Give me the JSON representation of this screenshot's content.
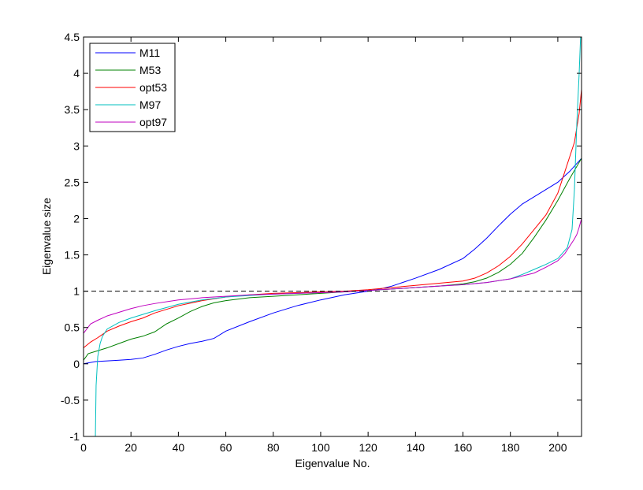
{
  "chart_data": {
    "type": "line",
    "title": "",
    "xlabel": "Eigenvalue No.",
    "ylabel": "Eigenvalue size",
    "xlim": [
      0,
      210
    ],
    "ylim": [
      -1,
      4.5
    ],
    "xticks": [
      0,
      20,
      40,
      60,
      80,
      100,
      120,
      140,
      160,
      180,
      200
    ],
    "yticks": [
      -1,
      -0.5,
      0,
      0.5,
      1,
      1.5,
      2,
      2.5,
      3,
      3.5,
      4,
      4.5
    ],
    "xtick_labels": [
      "0",
      "20",
      "40",
      "60",
      "80",
      "100",
      "120",
      "140",
      "160",
      "180",
      "200"
    ],
    "ytick_labels": [
      "-1",
      "-0.5",
      "0",
      "0.5",
      "1",
      "1.5",
      "2",
      "2.5",
      "3",
      "3.5",
      "4",
      "4.5"
    ],
    "grid": false,
    "legend_position": "top-left",
    "reference_line": {
      "y": 1,
      "style": "dashed",
      "color": "#000000"
    },
    "series": [
      {
        "name": "M11",
        "color": "#0000ff",
        "x": [
          0,
          5,
          10,
          15,
          20,
          25,
          30,
          35,
          40,
          45,
          50,
          55,
          60,
          70,
          80,
          90,
          100,
          110,
          120,
          125,
          130,
          140,
          150,
          160,
          165,
          170,
          175,
          180,
          185,
          190,
          195,
          200,
          205,
          210
        ],
        "y": [
          0.0,
          0.03,
          0.04,
          0.05,
          0.06,
          0.08,
          0.13,
          0.19,
          0.24,
          0.28,
          0.31,
          0.35,
          0.45,
          0.58,
          0.7,
          0.8,
          0.88,
          0.95,
          1.0,
          1.03,
          1.07,
          1.18,
          1.3,
          1.45,
          1.58,
          1.73,
          1.9,
          2.06,
          2.2,
          2.3,
          2.4,
          2.5,
          2.65,
          2.83
        ]
      },
      {
        "name": "M53",
        "color": "#008000",
        "x": [
          0,
          2,
          5,
          10,
          15,
          20,
          25,
          30,
          35,
          40,
          45,
          50,
          55,
          60,
          70,
          80,
          90,
          100,
          110,
          120,
          130,
          140,
          150,
          160,
          165,
          170,
          175,
          180,
          185,
          190,
          195,
          200,
          205,
          210
        ],
        "y": [
          0.05,
          0.14,
          0.17,
          0.22,
          0.28,
          0.34,
          0.38,
          0.44,
          0.55,
          0.63,
          0.72,
          0.79,
          0.84,
          0.87,
          0.91,
          0.93,
          0.95,
          0.97,
          0.99,
          1.01,
          1.03,
          1.05,
          1.07,
          1.1,
          1.13,
          1.18,
          1.26,
          1.37,
          1.52,
          1.74,
          1.98,
          2.25,
          2.55,
          2.83
        ]
      },
      {
        "name": "opt53",
        "color": "#ff0000",
        "x": [
          0,
          3,
          6,
          10,
          15,
          20,
          25,
          30,
          40,
          50,
          60,
          70,
          80,
          90,
          100,
          110,
          120,
          130,
          140,
          150,
          160,
          165,
          170,
          175,
          180,
          185,
          190,
          195,
          200,
          203,
          205,
          207,
          209,
          210
        ],
        "y": [
          0.22,
          0.3,
          0.36,
          0.45,
          0.52,
          0.58,
          0.63,
          0.7,
          0.8,
          0.87,
          0.92,
          0.95,
          0.97,
          0.98,
          0.99,
          1.0,
          1.02,
          1.05,
          1.08,
          1.11,
          1.14,
          1.18,
          1.25,
          1.35,
          1.48,
          1.65,
          1.85,
          2.05,
          2.35,
          2.65,
          2.85,
          3.05,
          3.45,
          3.78
        ]
      },
      {
        "name": "M97",
        "color": "#00bfbf",
        "x": [
          5,
          5.3,
          6,
          7,
          8,
          10,
          15,
          20,
          25,
          30,
          40,
          50,
          60,
          70,
          80,
          90,
          100,
          110,
          120,
          130,
          140,
          150,
          160,
          170,
          180,
          185,
          190,
          195,
          200,
          204,
          206,
          207,
          208,
          209,
          209.6
        ],
        "y": [
          -1.0,
          -0.3,
          0.1,
          0.28,
          0.38,
          0.48,
          0.57,
          0.63,
          0.68,
          0.73,
          0.82,
          0.88,
          0.92,
          0.94,
          0.96,
          0.97,
          0.98,
          0.99,
          1.01,
          1.03,
          1.05,
          1.07,
          1.09,
          1.12,
          1.17,
          1.23,
          1.3,
          1.37,
          1.45,
          1.6,
          1.85,
          2.4,
          3.3,
          4.0,
          4.5
        ]
      },
      {
        "name": "opt97",
        "color": "#bf00bf",
        "x": [
          0,
          3,
          6,
          10,
          15,
          20,
          25,
          30,
          40,
          50,
          60,
          70,
          80,
          90,
          100,
          110,
          120,
          130,
          140,
          150,
          160,
          170,
          180,
          190,
          195,
          200,
          203,
          205,
          207,
          208,
          209,
          210
        ],
        "y": [
          0.42,
          0.55,
          0.6,
          0.66,
          0.71,
          0.76,
          0.8,
          0.83,
          0.88,
          0.91,
          0.93,
          0.95,
          0.96,
          0.97,
          0.98,
          0.99,
          1.01,
          1.03,
          1.05,
          1.07,
          1.09,
          1.12,
          1.17,
          1.25,
          1.33,
          1.42,
          1.52,
          1.62,
          1.72,
          1.78,
          1.88,
          2.0
        ]
      }
    ]
  }
}
